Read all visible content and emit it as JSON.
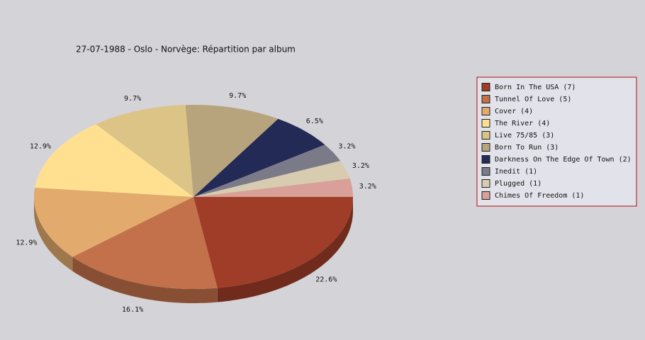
{
  "chart_data": {
    "type": "pie",
    "title": "27-07-1988 - Oslo - Norvège:  Répartition par album",
    "categories": [
      "Born In The USA (7)",
      "Tunnel Of Love (5)",
      "Cover (4)",
      "The River (4)",
      "Live 75/85 (3)",
      "Born To Run (3)",
      "Darkness On The Edge Of Town (2)",
      "Inedit (1)",
      "Plugged (1)",
      "Chimes Of Freedom (1)"
    ],
    "values": [
      22.6,
      16.1,
      12.9,
      12.9,
      9.7,
      9.7,
      6.5,
      3.2,
      3.2,
      3.2
    ],
    "value_labels": [
      "22.6%",
      "16.1%",
      "12.9%",
      "12.9%",
      "9.7%",
      "9.7%",
      "6.5%",
      "3.2%",
      "3.2%",
      "3.2%"
    ],
    "colors": [
      "#a03d28",
      "#c2714a",
      "#e2aa6c",
      "#ffdf90",
      "#dcc487",
      "#b8a47c",
      "#222a55",
      "#7a7a88",
      "#d8ccb0",
      "#d8a098"
    ]
  }
}
